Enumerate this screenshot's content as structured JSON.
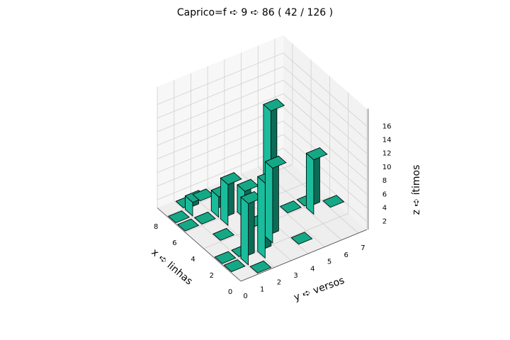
{
  "chart_data": {
    "type": "bar3d",
    "title": "Caprico=f ➪ 9 ➪ 86 ( 42 / 126 )",
    "xlabel": "x ➪ linhas",
    "ylabel": "y ➪ versos",
    "zlabel": "z ➪ ítimos",
    "x_ticks": [
      "0",
      "2",
      "4",
      "6",
      "8"
    ],
    "y_ticks": [
      "0",
      "1",
      "2",
      "3",
      "4",
      "5",
      "6",
      "7"
    ],
    "z_ticks": [
      "2",
      "4",
      "6",
      "8",
      "10",
      "12",
      "14",
      "16"
    ],
    "xlim": [
      0,
      9
    ],
    "ylim": [
      0,
      7.5
    ],
    "zlim": [
      1,
      17
    ],
    "grid": true,
    "bar_color": "#1abc9c",
    "edge_color": "#000000",
    "bars": [
      {
        "x": 0,
        "y": 1,
        "z": 1
      },
      {
        "x": 1,
        "y": 1,
        "z": 10
      },
      {
        "x": 1,
        "y": 2,
        "z": 12
      },
      {
        "x": 1,
        "y": 0,
        "z": 1
      },
      {
        "x": 2,
        "y": 0,
        "z": 1
      },
      {
        "x": 2,
        "y": 1,
        "z": 1
      },
      {
        "x": 1,
        "y": 4,
        "z": 1
      },
      {
        "x": 2,
        "y": 3,
        "z": 12
      },
      {
        "x": 4,
        "y": 1,
        "z": 1
      },
      {
        "x": 4,
        "y": 3,
        "z": 1
      },
      {
        "x": 3,
        "y": 6,
        "z": 9
      },
      {
        "x": 3,
        "y": 7,
        "z": 1
      },
      {
        "x": 4,
        "y": 6,
        "z": 1
      },
      {
        "x": 4,
        "y": 5,
        "z": 1
      },
      {
        "x": 5,
        "y": 2,
        "z": 7
      },
      {
        "x": 5,
        "y": 3,
        "z": 5
      },
      {
        "x": 6,
        "y": 0,
        "z": 1
      },
      {
        "x": 6,
        "y": 1,
        "z": 1
      },
      {
        "x": 6,
        "y": 2,
        "z": 4
      },
      {
        "x": 7,
        "y": 0,
        "z": 1
      },
      {
        "x": 7,
        "y": 1,
        "z": 3
      },
      {
        "x": 4,
        "y": 4,
        "z": 17
      },
      {
        "x": 8,
        "y": 1,
        "z": 1
      },
      {
        "x": 8,
        "y": 2,
        "z": 1
      }
    ]
  }
}
